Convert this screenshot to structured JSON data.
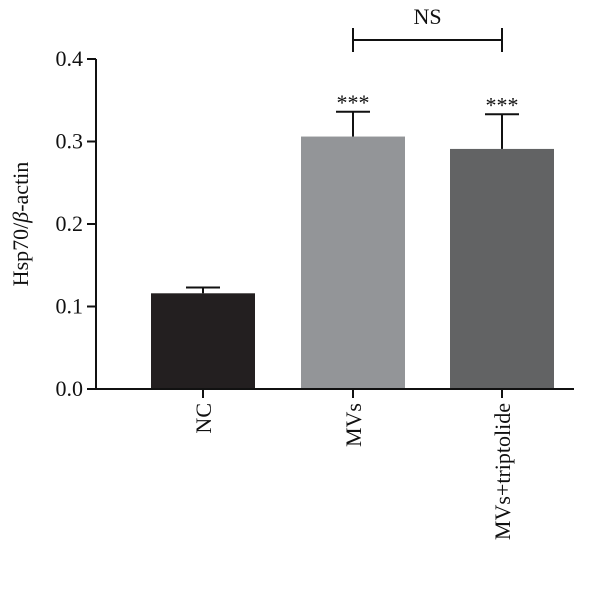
{
  "chart_data": {
    "type": "bar",
    "categories": [
      "NC",
      "MVs",
      "MVs+triptolide"
    ],
    "values": [
      0.116,
      0.306,
      0.291
    ],
    "errors": [
      0.007,
      0.03,
      0.042
    ],
    "colors": [
      "#231f20",
      "#939598",
      "#626364"
    ],
    "ylabel_prefix": "Hsp70/",
    "ylabel_greek": "β",
    "ylabel_suffix": "-actin",
    "xlabel": "",
    "ylim": [
      0.0,
      0.4
    ],
    "yticks": [
      0.0,
      0.1,
      0.2,
      0.3,
      0.4
    ],
    "ytick_labels": [
      "0.0",
      "0.1",
      "0.2",
      "0.3",
      "0.4"
    ],
    "significance": [
      "",
      "***",
      "***"
    ],
    "comparison": {
      "label": "NS",
      "between": [
        1,
        2
      ]
    }
  }
}
